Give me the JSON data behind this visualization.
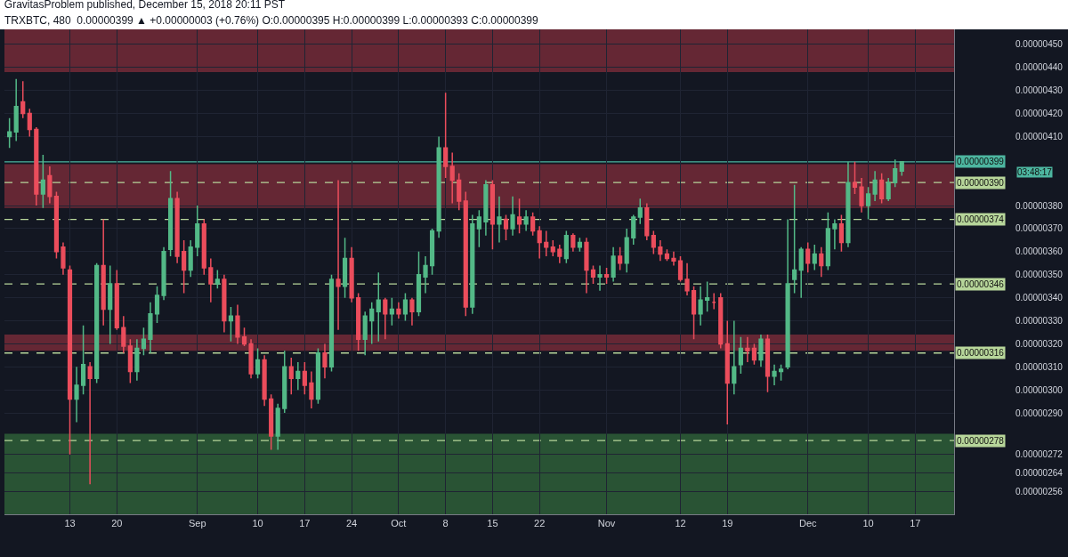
{
  "chart_data": {
    "type": "candlestick",
    "title": "GravitasProblem published, December 15, 2018 20:11 PST",
    "subtitle": "TRXBTC, 480  0.00000399 ▲ +0.00000003 (+0.76%) O:0.00000395 H:0.00000399 L:0.00000393 C:0.00000399",
    "x": [
      "2018-08-04",
      "2018-08-05",
      "2018-08-06",
      "2018-08-07",
      "2018-08-08",
      "2018-08-09",
      "2018-08-10",
      "2018-08-11",
      "2018-08-12",
      "2018-08-13",
      "2018-08-14",
      "2018-08-15",
      "2018-08-16",
      "2018-08-17",
      "2018-08-18",
      "2018-08-19",
      "2018-08-20",
      "2018-08-21",
      "2018-08-22",
      "2018-08-23",
      "2018-08-24",
      "2018-08-25",
      "2018-08-26",
      "2018-08-27",
      "2018-08-28",
      "2018-08-29",
      "2018-08-30",
      "2018-08-31",
      "2018-09-01",
      "2018-09-02",
      "2018-09-03",
      "2018-09-04",
      "2018-09-05",
      "2018-09-06",
      "2018-09-07",
      "2018-09-08",
      "2018-09-09",
      "2018-09-10",
      "2018-09-11",
      "2018-09-12",
      "2018-09-13",
      "2018-09-14",
      "2018-09-15",
      "2018-09-16",
      "2018-09-17",
      "2018-09-18",
      "2018-09-19",
      "2018-09-20",
      "2018-09-21",
      "2018-09-22",
      "2018-09-23",
      "2018-09-24",
      "2018-09-25",
      "2018-09-26",
      "2018-09-27",
      "2018-09-28",
      "2018-09-29",
      "2018-09-30",
      "2018-10-01",
      "2018-10-02",
      "2018-10-03",
      "2018-10-04",
      "2018-10-05",
      "2018-10-06",
      "2018-10-07",
      "2018-10-08",
      "2018-10-09",
      "2018-10-10",
      "2018-10-11",
      "2018-10-12",
      "2018-10-13",
      "2018-10-14",
      "2018-10-15",
      "2018-10-16",
      "2018-10-17",
      "2018-10-18",
      "2018-10-19",
      "2018-10-20",
      "2018-10-21",
      "2018-10-22",
      "2018-10-23",
      "2018-10-24",
      "2018-10-25",
      "2018-10-26",
      "2018-10-27",
      "2018-10-28",
      "2018-10-29",
      "2018-10-30",
      "2018-10-31",
      "2018-11-01",
      "2018-11-02",
      "2018-11-03",
      "2018-11-04",
      "2018-11-05",
      "2018-11-06",
      "2018-11-07",
      "2018-11-08",
      "2018-11-09",
      "2018-11-10",
      "2018-11-11",
      "2018-11-12",
      "2018-11-13",
      "2018-11-14",
      "2018-11-15",
      "2018-11-16",
      "2018-11-17",
      "2018-11-18",
      "2018-11-19",
      "2018-11-20",
      "2018-11-21",
      "2018-11-22",
      "2018-11-23",
      "2018-11-24",
      "2018-11-25",
      "2018-11-26",
      "2018-11-27",
      "2018-11-28",
      "2018-11-29",
      "2018-11-30",
      "2018-12-01",
      "2018-12-02",
      "2018-12-03",
      "2018-12-04",
      "2018-12-05",
      "2018-12-06",
      "2018-12-07",
      "2018-12-08",
      "2018-12-09",
      "2018-12-10",
      "2018-12-11",
      "2018-12-12",
      "2018-12-13",
      "2018-12-14",
      "2018-12-15"
    ],
    "ohlc": [
      [
        4.1e-06,
        4.18e-06,
        4.05e-06,
        4.12e-06
      ],
      [
        4.12e-06,
        4.35e-06,
        4.08e-06,
        4.23e-06
      ],
      [
        4.25e-06,
        4.34e-06,
        4.18e-06,
        4.2e-06
      ],
      [
        4.2e-06,
        4.22e-06,
        4.1e-06,
        4.13e-06
      ],
      [
        4.13e-06,
        4.14e-06,
        3.8e-06,
        3.85e-06
      ],
      [
        3.85e-06,
        4.02e-06,
        3.79e-06,
        3.91e-06
      ],
      [
        3.93e-06,
        3.97e-06,
        3.81e-06,
        3.84e-06
      ],
      [
        3.84e-06,
        3.86e-06,
        3.57e-06,
        3.6e-06
      ],
      [
        3.62e-06,
        3.64e-06,
        3.5e-06,
        3.53e-06
      ],
      [
        3.52e-06,
        3.54e-06,
        2.72e-06,
        2.96e-06
      ],
      [
        2.96e-06,
        3.1e-06,
        2.86e-06,
        3.02e-06
      ],
      [
        3.02e-06,
        3.28e-06,
        2.98e-06,
        3.11e-06
      ],
      [
        3.1e-06,
        3.12e-06,
        2.59e-06,
        3.05e-06
      ],
      [
        3.05e-06,
        3.55e-06,
        3.03e-06,
        3.54e-06
      ],
      [
        3.54e-06,
        3.74e-06,
        3.28e-06,
        3.35e-06
      ],
      [
        3.35e-06,
        3.54e-06,
        3.2e-06,
        3.46e-06
      ],
      [
        3.46e-06,
        3.52e-06,
        3.26e-06,
        3.27e-06
      ],
      [
        3.27e-06,
        3.32e-06,
        3.16e-06,
        3.19e-06
      ],
      [
        3.19e-06,
        3.22e-06,
        3.03e-06,
        3.08e-06
      ],
      [
        3.08e-06,
        3.22e-06,
        3.04e-06,
        3.18e-06
      ],
      [
        3.18e-06,
        3.27e-06,
        3.15e-06,
        3.22e-06
      ],
      [
        3.22e-06,
        3.38e-06,
        3.16e-06,
        3.33e-06
      ],
      [
        3.33e-06,
        3.45e-06,
        3.29e-06,
        3.41e-06
      ],
      [
        3.41e-06,
        3.62e-06,
        3.39e-06,
        3.6e-06
      ],
      [
        3.61e-06,
        3.95e-06,
        3.58e-06,
        3.83e-06
      ],
      [
        3.83e-06,
        3.86e-06,
        3.55e-06,
        3.58e-06
      ],
      [
        3.6e-06,
        3.65e-06,
        3.42e-06,
        3.52e-06
      ],
      [
        3.52e-06,
        3.65e-06,
        3.49e-06,
        3.62e-06
      ],
      [
        3.62e-06,
        3.8e-06,
        3.58e-06,
        3.72e-06
      ],
      [
        3.72e-06,
        3.74e-06,
        3.5e-06,
        3.53e-06
      ],
      [
        3.53e-06,
        3.57e-06,
        3.38e-06,
        3.46e-06
      ],
      [
        3.46e-06,
        3.52e-06,
        3.44e-06,
        3.48e-06
      ],
      [
        3.48e-06,
        3.5e-06,
        3.25e-06,
        3.3e-06
      ],
      [
        3.3e-06,
        3.36e-06,
        3.21e-06,
        3.32e-06
      ],
      [
        3.32e-06,
        3.37e-06,
        3.2e-06,
        3.23e-06
      ],
      [
        3.23e-06,
        3.27e-06,
        3.19e-06,
        3.2e-06
      ],
      [
        3.2e-06,
        3.22e-06,
        3.05e-06,
        3.07e-06
      ],
      [
        3.07e-06,
        3.18e-06,
        3.05e-06,
        3.13e-06
      ],
      [
        3.13e-06,
        3.15e-06,
        2.93e-06,
        2.96e-06
      ],
      [
        2.96e-06,
        2.98e-06,
        2.74e-06,
        2.8e-06
      ],
      [
        2.8e-06,
        2.94e-06,
        2.74e-06,
        2.92e-06
      ],
      [
        2.92e-06,
        3.17e-06,
        2.9e-06,
        3.1e-06
      ],
      [
        3.1e-06,
        3.14e-06,
        2.98e-06,
        3.05e-06
      ],
      [
        3.05e-06,
        3.12e-06,
        3e-06,
        3.08e-06
      ],
      [
        3.08e-06,
        3.12e-06,
        2.98e-06,
        3.02e-06
      ],
      [
        3.03e-06,
        3.08e-06,
        2.92e-06,
        2.96e-06
      ],
      [
        2.96e-06,
        3.18e-06,
        2.94e-06,
        3.16e-06
      ],
      [
        3.16e-06,
        3.2e-06,
        3.05e-06,
        3.1e-06
      ],
      [
        3.1e-06,
        3.5e-06,
        3.08e-06,
        3.48e-06
      ],
      [
        3.48e-06,
        3.91e-06,
        3.26e-06,
        3.45e-06
      ],
      [
        3.45e-06,
        3.66e-06,
        3.4e-06,
        3.57e-06
      ],
      [
        3.57e-06,
        3.62e-06,
        3.38e-06,
        3.4e-06
      ],
      [
        3.4e-06,
        3.42e-06,
        3.17e-06,
        3.22e-06
      ],
      [
        3.22e-06,
        3.34e-06,
        3.15e-06,
        3.32e-06
      ],
      [
        3.3e-06,
        3.38e-06,
        3.2e-06,
        3.35e-06
      ],
      [
        3.34e-06,
        3.51e-06,
        3.21e-06,
        3.39e-06
      ],
      [
        3.39e-06,
        3.4e-06,
        3.22e-06,
        3.33e-06
      ],
      [
        3.33e-06,
        3.4e-06,
        3.28e-06,
        3.35e-06
      ],
      [
        3.35e-06,
        3.38e-06,
        3.31e-06,
        3.33e-06
      ],
      [
        3.33e-06,
        3.42e-06,
        3.3e-06,
        3.39e-06
      ],
      [
        3.39e-06,
        3.4e-06,
        3.28e-06,
        3.34e-06
      ],
      [
        3.34e-06,
        3.6e-06,
        3.32e-06,
        3.5e-06
      ],
      [
        3.49e-06,
        3.58e-06,
        3.42e-06,
        3.54e-06
      ],
      [
        3.54e-06,
        3.7e-06,
        3.5e-06,
        3.69e-06
      ],
      [
        3.69e-06,
        4.1e-06,
        3.66e-06,
        4.05e-06
      ],
      [
        4.05e-06,
        4.29e-06,
        3.92e-06,
        3.97e-06
      ],
      [
        3.97e-06,
        4.03e-06,
        3.81e-06,
        3.91e-06
      ],
      [
        3.91e-06,
        3.94e-06,
        3.78e-06,
        3.82e-06
      ],
      [
        3.82e-06,
        3.86e-06,
        3.32e-06,
        3.36e-06
      ],
      [
        3.36e-06,
        3.76e-06,
        3.33e-06,
        3.72e-06
      ],
      [
        3.7e-06,
        3.78e-06,
        3.62e-06,
        3.75e-06
      ],
      [
        3.73e-06,
        3.91e-06,
        3.67e-06,
        3.89e-06
      ],
      [
        3.89e-06,
        3.91e-06,
        3.61e-06,
        3.72e-06
      ],
      [
        3.72e-06,
        3.84e-06,
        3.64e-06,
        3.75e-06
      ],
      [
        3.74e-06,
        3.76e-06,
        3.65e-06,
        3.7e-06
      ],
      [
        3.7e-06,
        3.84e-06,
        3.67e-06,
        3.76e-06
      ],
      [
        3.75e-06,
        3.83e-06,
        3.68e-06,
        3.72e-06
      ],
      [
        3.72e-06,
        3.78e-06,
        3.69e-06,
        3.75e-06
      ],
      [
        3.75e-06,
        3.77e-06,
        3.67e-06,
        3.69e-06
      ],
      [
        3.69e-06,
        3.71e-06,
        3.57e-06,
        3.64e-06
      ],
      [
        3.64e-06,
        3.69e-06,
        3.58e-06,
        3.62e-06
      ],
      [
        3.62e-06,
        3.65e-06,
        3.58e-06,
        3.6e-06
      ],
      [
        3.61e-06,
        3.63e-06,
        3.55e-06,
        3.58e-06
      ],
      [
        3.57e-06,
        3.69e-06,
        3.55e-06,
        3.67e-06
      ],
      [
        3.67e-06,
        3.68e-06,
        3.6e-06,
        3.62e-06
      ],
      [
        3.62e-06,
        3.66e-06,
        3.6e-06,
        3.64e-06
      ],
      [
        3.64e-06,
        3.66e-06,
        3.42e-06,
        3.52e-06
      ],
      [
        3.52e-06,
        3.54e-06,
        3.46e-06,
        3.49e-06
      ],
      [
        3.49e-06,
        3.54e-06,
        3.43e-06,
        3.5e-06
      ],
      [
        3.5e-06,
        3.53e-06,
        3.46e-06,
        3.49e-06
      ],
      [
        3.49e-06,
        3.62e-06,
        3.47e-06,
        3.58e-06
      ],
      [
        3.58e-06,
        3.62e-06,
        3.52e-06,
        3.55e-06
      ],
      [
        3.55e-06,
        3.7e-06,
        3.51e-06,
        3.66e-06
      ],
      [
        3.66e-06,
        3.76e-06,
        3.63e-06,
        3.75e-06
      ],
      [
        3.75e-06,
        3.83e-06,
        3.72e-06,
        3.79e-06
      ],
      [
        3.79e-06,
        3.81e-06,
        3.65e-06,
        3.67e-06
      ],
      [
        3.67e-06,
        3.69e-06,
        3.59e-06,
        3.62e-06
      ],
      [
        3.62e-06,
        3.65e-06,
        3.56e-06,
        3.59e-06
      ],
      [
        3.59e-06,
        3.61e-06,
        3.56e-06,
        3.57e-06
      ],
      [
        3.57e-06,
        3.6e-06,
        3.54e-06,
        3.56e-06
      ],
      [
        3.56e-06,
        3.58e-06,
        3.47e-06,
        3.48e-06
      ],
      [
        3.48e-06,
        3.55e-06,
        3.41e-06,
        3.43e-06
      ],
      [
        3.43e-06,
        3.45e-06,
        3.22e-06,
        3.33e-06
      ],
      [
        3.33e-06,
        3.45e-06,
        3.28e-06,
        3.39e-06
      ],
      [
        3.39e-06,
        3.47e-06,
        3.34e-06,
        3.4e-06
      ],
      [
        3.38e-06,
        3.42e-06,
        3.35e-06,
        3.38e-06
      ],
      [
        3.4e-06,
        3.42e-06,
        3.18e-06,
        3.2e-06
      ],
      [
        3.2e-06,
        3.3e-06,
        2.85e-06,
        3.03e-06
      ],
      [
        3.03e-06,
        3.3e-06,
        2.98e-06,
        3.1e-06
      ],
      [
        3.11e-06,
        3.23e-06,
        3.07e-06,
        3.18e-06
      ],
      [
        3.18e-06,
        3.23e-06,
        3.12e-06,
        3.17e-06
      ],
      [
        3.18e-06,
        3.2e-06,
        3.11e-06,
        3.13e-06
      ],
      [
        3.13e-06,
        3.24e-06,
        3.1e-06,
        3.22e-06
      ],
      [
        3.22e-06,
        3.24e-06,
        2.99e-06,
        3.06e-06
      ],
      [
        3.06e-06,
        3.11e-06,
        3.02e-06,
        3.08e-06
      ],
      [
        3.08e-06,
        3.11e-06,
        3.04e-06,
        3.09e-06
      ],
      [
        3.1e-06,
        3.74e-06,
        3.09e-06,
        3.46e-06
      ],
      [
        3.48e-06,
        3.89e-06,
        3.42e-06,
        3.52e-06
      ],
      [
        3.52e-06,
        3.62e-06,
        3.4e-06,
        3.61e-06
      ],
      [
        3.61e-06,
        3.64e-06,
        3.51e-06,
        3.55e-06
      ],
      [
        3.55e-06,
        3.63e-06,
        3.52e-06,
        3.59e-06
      ],
      [
        3.59e-06,
        3.62e-06,
        3.49e-06,
        3.54e-06
      ],
      [
        3.54e-06,
        3.77e-06,
        3.52e-06,
        3.7e-06
      ],
      [
        3.7e-06,
        3.74e-06,
        3.61e-06,
        3.72e-06
      ],
      [
        3.72e-06,
        3.76e-06,
        3.6e-06,
        3.64e-06
      ],
      [
        3.64e-06,
        3.99e-06,
        3.62e-06,
        3.9e-06
      ],
      [
        3.9e-06,
        3.99e-06,
        3.85e-06,
        3.88e-06
      ],
      [
        3.88e-06,
        3.92e-06,
        3.77e-06,
        3.8e-06
      ],
      [
        3.8e-06,
        3.88e-06,
        3.74e-06,
        3.85e-06
      ],
      [
        3.85e-06,
        3.95e-06,
        3.82e-06,
        3.91e-06
      ],
      [
        3.91e-06,
        3.94e-06,
        3.81e-06,
        3.83e-06
      ],
      [
        3.83e-06,
        3.92e-06,
        3.82e-06,
        3.9e-06
      ],
      [
        3.9e-06,
        4e-06,
        3.88e-06,
        3.96e-06
      ],
      [
        3.95e-06,
        3.99e-06,
        3.93e-06,
        3.99e-06
      ]
    ],
    "xlim": [
      "2018-08-03T06:00",
      "2018-12-22T19:00"
    ],
    "xticks": [
      {
        "value": "2018-08-13",
        "label": "13"
      },
      {
        "value": "2018-08-20",
        "label": "20"
      },
      {
        "value": "2018-09-01",
        "label": "Sep"
      },
      {
        "value": "2018-09-10",
        "label": "10"
      },
      {
        "value": "2018-09-17",
        "label": "17"
      },
      {
        "value": "2018-09-24",
        "label": "24"
      },
      {
        "value": "2018-10-01",
        "label": "Oct"
      },
      {
        "value": "2018-10-08",
        "label": "8"
      },
      {
        "value": "2018-10-15",
        "label": "15"
      },
      {
        "value": "2018-10-22",
        "label": "22"
      },
      {
        "value": "2018-11-01",
        "label": "Nov"
      },
      {
        "value": "2018-11-12",
        "label": "12"
      },
      {
        "value": "2018-11-19",
        "label": "19"
      },
      {
        "value": "2018-12-01",
        "label": "Dec"
      },
      {
        "value": "2018-12-10",
        "label": "10"
      },
      {
        "value": "2018-12-17",
        "label": "17"
      }
    ],
    "ylim": [
      2.46e-06,
      4.565e-06
    ],
    "yticks": [
      {
        "value": 2.56e-06,
        "label": "0.00000256"
      },
      {
        "value": 2.64e-06,
        "label": "0.00000264"
      },
      {
        "value": 2.72e-06,
        "label": "0.00000272"
      },
      {
        "value": 2.9e-06,
        "label": "0.00000290"
      },
      {
        "value": 3e-06,
        "label": "0.00000300"
      },
      {
        "value": 3.1e-06,
        "label": "0.00000310"
      },
      {
        "value": 3.2e-06,
        "label": "0.00000320"
      },
      {
        "value": 3.3e-06,
        "label": "0.00000330"
      },
      {
        "value": 3.4e-06,
        "label": "0.00000340"
      },
      {
        "value": 3.5e-06,
        "label": "0.00000350"
      },
      {
        "value": 3.6e-06,
        "label": "0.00000360"
      },
      {
        "value": 3.7e-06,
        "label": "0.00000370"
      },
      {
        "value": 3.8e-06,
        "label": "0.00000380"
      },
      {
        "value": 4.1e-06,
        "label": "0.00000410"
      },
      {
        "value": 4.2e-06,
        "label": "0.00000420"
      },
      {
        "value": 4.3e-06,
        "label": "0.00000430"
      },
      {
        "value": 4.4e-06,
        "label": "0.00000440"
      },
      {
        "value": 4.5e-06,
        "label": "0.00000450"
      }
    ],
    "grid": true,
    "bands": [
      {
        "axis": "y",
        "from": 4.38e-06,
        "to": 4.565e-06,
        "color": "#e04050"
      },
      {
        "axis": "y",
        "from": 3.79e-06,
        "to": 3.98e-06,
        "color": "#e04050"
      },
      {
        "axis": "y",
        "from": 3.17e-06,
        "to": 3.24e-06,
        "color": "#e04050"
      },
      {
        "axis": "y",
        "from": 2.46e-06,
        "to": 2.81e-06,
        "color": "#4caf50"
      }
    ],
    "ref_lines": [
      {
        "axis": "y",
        "value": 3.99e-06,
        "label": "0.00000399",
        "color": "#4db6a0",
        "line_style": "solid"
      },
      {
        "axis": "y",
        "value": 3.9e-06,
        "label": "0.00000390",
        "color": "#b7d69a",
        "line_style": "dashed"
      },
      {
        "axis": "y",
        "value": 3.74e-06,
        "label": "0.00000374",
        "color": "#b7d69a",
        "line_style": "dashed"
      },
      {
        "axis": "y",
        "value": 3.46e-06,
        "label": "0.00000346",
        "color": "#b7d69a",
        "line_style": "dashed"
      },
      {
        "axis": "y",
        "value": 3.16e-06,
        "label": "0.00000316",
        "color": "#b7d69a",
        "line_style": "dashed"
      },
      {
        "axis": "y",
        "value": 2.78e-06,
        "label": "0.00000278",
        "color": "#b7d69a",
        "line_style": "dashed"
      }
    ],
    "annotations": [
      "03:48:17"
    ]
  }
}
